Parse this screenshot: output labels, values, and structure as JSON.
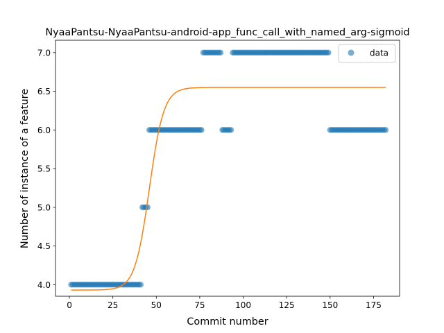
{
  "chart_data": {
    "type": "scatter",
    "title": "NyaaPantsu-NyaaPantsu-android-app_func_call_with_named_arg-sigmoid",
    "xlabel": "Commit number",
    "ylabel": "Number of instance of a feature",
    "xlim": [
      -8,
      190
    ],
    "ylim": [
      3.85,
      7.16
    ],
    "xticks": [
      0,
      25,
      50,
      75,
      100,
      125,
      150,
      175
    ],
    "xtick_labels": [
      "0",
      "25",
      "50",
      "75",
      "100",
      "125",
      "150",
      "175"
    ],
    "yticks": [
      4.0,
      4.5,
      5.0,
      5.5,
      6.0,
      6.5,
      7.0
    ],
    "ytick_labels": [
      "4.0",
      "4.5",
      "5.0",
      "5.5",
      "6.0",
      "6.5",
      "7.0"
    ],
    "grid": false,
    "legend": {
      "position": "top-right",
      "entries": [
        {
          "label": "data",
          "marker": "circle"
        }
      ]
    },
    "colors": {
      "data": "#1f77b4",
      "fit": "#ff7f0e"
    },
    "series": [
      {
        "name": "data",
        "kind": "scatter",
        "segments": [
          {
            "x_start": 1,
            "x_end": 41,
            "y": 4.0
          },
          {
            "x_start": 42,
            "x_end": 45,
            "y": 5.0
          },
          {
            "x_start": 46,
            "x_end": 76,
            "y": 6.0
          },
          {
            "x_start": 77,
            "x_end": 87,
            "y": 7.0
          },
          {
            "x_start": 88,
            "x_end": 93,
            "y": 6.0
          },
          {
            "x_start": 94,
            "x_end": 149,
            "y": 7.0
          },
          {
            "x_start": 150,
            "x_end": 182,
            "y": 6.0
          }
        ]
      },
      {
        "kind": "line",
        "sigmoid": {
          "L": 2.62,
          "k": 0.24,
          "x0": 46,
          "b": 3.93
        },
        "x_range": [
          1,
          182
        ]
      }
    ]
  }
}
